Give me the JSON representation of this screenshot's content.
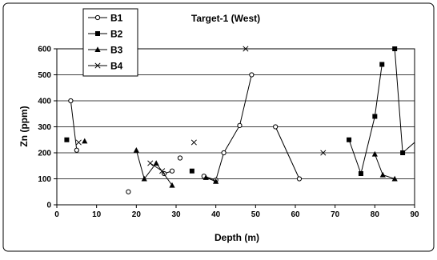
{
  "chart_data": {
    "type": "scatter",
    "title": "Target-1 (West)",
    "xlabel": "Depth (m)",
    "ylabel": "Zn (ppm)",
    "xlim": [
      0,
      90
    ],
    "ylim": [
      0,
      600
    ],
    "x_ticks": [
      0,
      10,
      20,
      30,
      40,
      50,
      60,
      70,
      80,
      90
    ],
    "y_ticks": [
      0,
      100,
      200,
      300,
      400,
      500,
      600
    ],
    "x_tick_labels": [
      "0",
      "10",
      "20",
      "30",
      "40",
      "50",
      "60",
      "70",
      "80",
      "90"
    ],
    "y_tick_labels": [
      "0",
      "100",
      "200",
      "300",
      "400",
      "500",
      "600"
    ],
    "grid": "horizontal",
    "legend_position": "top-left",
    "series": [
      {
        "name": "B1",
        "marker": "open-circle",
        "color": "#000000",
        "segments": [
          [
            [
              3.5,
              400
            ],
            [
              5,
              210
            ]
          ],
          [
            [
              18,
              50
            ]
          ],
          [
            [
              27,
              120
            ],
            [
              29,
              130
            ]
          ],
          [
            [
              31,
              180
            ]
          ],
          [
            [
              37,
              110
            ],
            [
              40,
              95
            ],
            [
              42,
              200
            ],
            [
              46,
              305
            ],
            [
              49,
              500
            ]
          ],
          [
            [
              55,
              300
            ],
            [
              61,
              100
            ]
          ]
        ]
      },
      {
        "name": "B2",
        "marker": "filled-square",
        "color": "#000000",
        "segments": [
          [
            [
              2.5,
              250
            ]
          ],
          [
            [
              34,
              130
            ]
          ],
          [
            [
              73.5,
              250
            ],
            [
              76.5,
              120
            ],
            [
              80,
              340
            ],
            [
              81.8,
              540
            ]
          ],
          [
            [
              85,
              600
            ],
            [
              87,
              200
            ],
            [
              90,
              240
            ]
          ]
        ]
      },
      {
        "name": "B3",
        "marker": "filled-triangle",
        "color": "#000000",
        "segments": [
          [
            [
              7,
              245
            ]
          ],
          [
            [
              20,
              210
            ],
            [
              22,
              100
            ],
            [
              25,
              160
            ],
            [
              29,
              75
            ]
          ],
          [
            [
              37.5,
              105
            ],
            [
              40,
              90
            ]
          ],
          [
            [
              80,
              195
            ],
            [
              82,
              115
            ],
            [
              85,
              100
            ]
          ]
        ]
      },
      {
        "name": "B4",
        "marker": "cross",
        "color": "#000000",
        "segments": [
          [
            [
              5.5,
              240
            ]
          ],
          [
            [
              23.5,
              160
            ],
            [
              26.5,
              130
            ]
          ],
          [
            [
              34.5,
              240
            ]
          ],
          [
            [
              47.5,
              600
            ]
          ],
          [
            [
              67,
              200
            ]
          ]
        ]
      }
    ]
  }
}
